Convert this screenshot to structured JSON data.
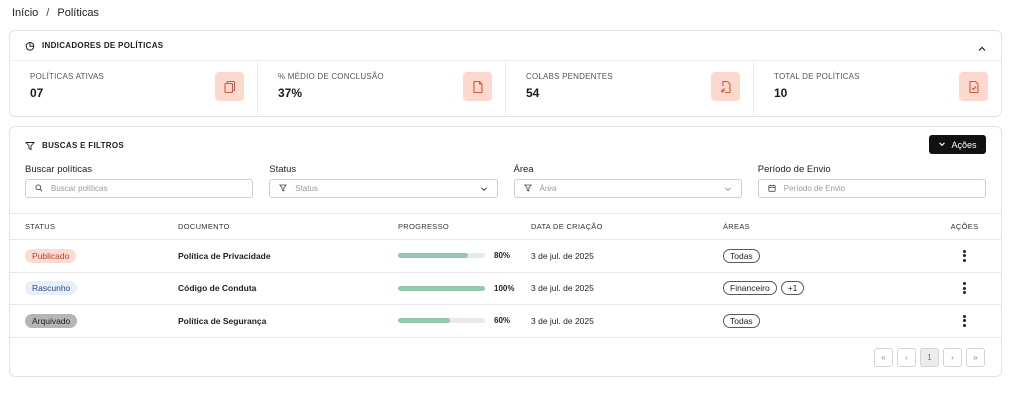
{
  "breadcrumb": {
    "home": "Início",
    "separator": "/",
    "current": "Políticas"
  },
  "indicators": {
    "title": "INDICADORES DE POLÍTICAS",
    "stats": [
      {
        "label": "POLÍTICAS ATIVAS",
        "value": "07",
        "icon": "copy-icon"
      },
      {
        "label": "% MÉDIO DE CONCLUSÃO",
        "value": "37%",
        "icon": "document-icon"
      },
      {
        "label": "COLABS PENDENTES",
        "value": "54",
        "icon": "document-return-icon"
      },
      {
        "label": "TOTAL DE POLÍTICAS",
        "value": "10",
        "icon": "document-check-icon"
      }
    ],
    "icon_bg": "#fcd9cf",
    "icon_color": "#d4583d"
  },
  "filters": {
    "title": "BUSCAS E FILTROS",
    "actions_label": "Ações",
    "fields": {
      "search": {
        "label": "Buscar políticas",
        "placeholder": "Buscar políticas"
      },
      "status": {
        "label": "Status",
        "placeholder": "Status"
      },
      "area": {
        "label": "Área",
        "placeholder": "Área"
      },
      "period": {
        "label": "Período de Envio",
        "placeholder": "Período de Envio"
      }
    }
  },
  "table": {
    "headers": {
      "status": "STATUS",
      "document": "DOCUMENTO",
      "progress": "PROGRESSO",
      "created": "DATA DE CRIAÇÃO",
      "areas": "ÁREAS",
      "actions": "AÇÕES"
    },
    "rows": [
      {
        "status": "Publicado",
        "status_kind": "published",
        "document": "Política de Privacidade",
        "progress": 80,
        "progress_label": "80%",
        "created": "3 de jul. de 2025",
        "areas": [
          "Todas"
        ]
      },
      {
        "status": "Rascunho",
        "status_kind": "draft",
        "document": "Código de Conduta",
        "progress": 100,
        "progress_label": "100%",
        "created": "3 de jul. de 2025",
        "areas": [
          "Financeiro",
          "+1"
        ]
      },
      {
        "status": "Arquivado",
        "status_kind": "archived",
        "document": "Política de Segurança",
        "progress": 60,
        "progress_label": "60%",
        "created": "3 de jul. de 2025",
        "areas": [
          "Todas"
        ]
      }
    ]
  },
  "pagination": {
    "current_page": "1",
    "first": "«",
    "prev": "‹",
    "next": "›",
    "last": "»"
  },
  "colors": {
    "progress_fill": "#94c8ac",
    "published_bg": "#fddbd2",
    "draft_bg": "#e6f0fb",
    "archived_bg": "#b5b5b5"
  }
}
